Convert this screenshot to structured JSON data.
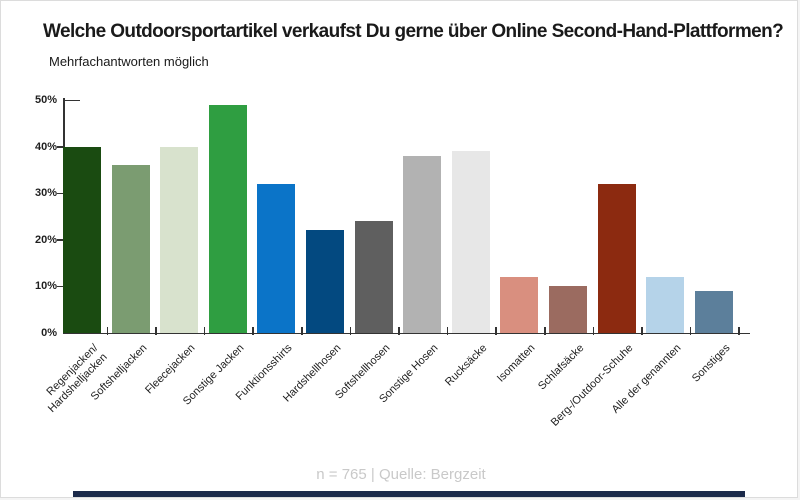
{
  "page": {
    "background": "#ffffff",
    "border_color": "#dcdcdc"
  },
  "chart_data": {
    "type": "bar",
    "title": "Welche Outdoorsportartikel verkaufst Du gerne über Online Second-Hand-Plattformen?",
    "subtitle": "Mehrfachantworten möglich",
    "categories": [
      "Regenjacken/\nHardshelljacken",
      "Softshelljacken",
      "Fleecejacken",
      "Sonstige Jacken",
      "Funktionsshirts",
      "Hardshellhosen",
      "Softshellhosen",
      "Sonstige Hosen",
      "Rucksäcke",
      "Isomatten",
      "Schlafsäcke",
      "Berg-/Outdoor-Schuhe",
      "Alle der genannten",
      "Sonstiges"
    ],
    "values": [
      40,
      36,
      40,
      49,
      32,
      22,
      24,
      38,
      39,
      12,
      10,
      32,
      12,
      9
    ],
    "bar_colors": [
      "#1a4b11",
      "#7b9c71",
      "#d8e2cd",
      "#2f9e41",
      "#0b74c8",
      "#034980",
      "#5f5f5f",
      "#b2b2b2",
      "#e7e7e7",
      "#d98f7f",
      "#9b6b60",
      "#8c2a10",
      "#b5d3e9",
      "#5c7f9b"
    ],
    "xlabel": "",
    "ylabel": "",
    "ylim": [
      0,
      50
    ],
    "y_tick_labels": [
      "0%",
      "10%",
      "20%",
      "30%",
      "40%",
      "50%"
    ],
    "grid": "off",
    "legend": "none",
    "axis_color": "#333333",
    "footer": "n = 765 | Quelle: Bergzeit",
    "footer_color": "#c9c9c9",
    "accent_bar_color": "#1b2a4a"
  }
}
